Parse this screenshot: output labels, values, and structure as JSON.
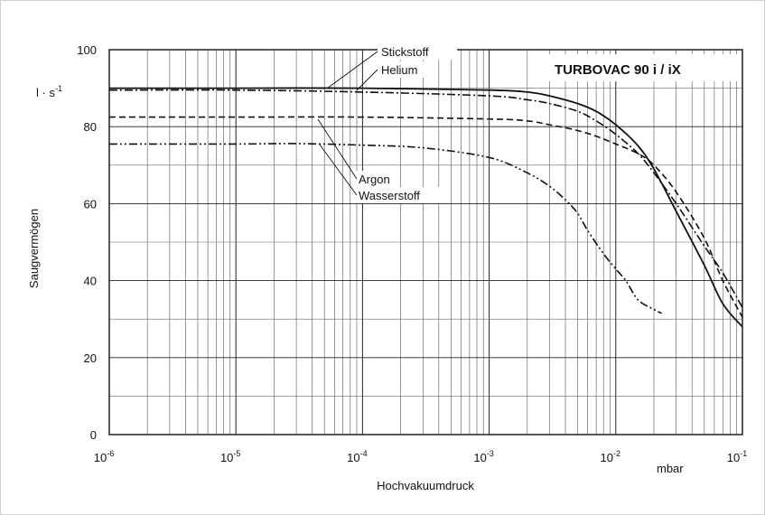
{
  "chart_data": {
    "type": "line",
    "title": "TURBOVAC 90 i / iX",
    "xlabel": "Hochvakuumdruck",
    "x_unit": "mbar",
    "ylabel": "Saugvermögen",
    "y_unit": "l · s",
    "y_unit_exp": "-1",
    "xscale": "log",
    "xlim": [
      1e-06,
      0.1
    ],
    "ylim": [
      0,
      100
    ],
    "grid": true,
    "x_ticks": [
      {
        "base": "10",
        "exp": "-6",
        "value": 1e-06
      },
      {
        "base": "10",
        "exp": "-5",
        "value": 1e-05
      },
      {
        "base": "10",
        "exp": "-4",
        "value": 0.0001
      },
      {
        "base": "10",
        "exp": "-3",
        "value": 0.001
      },
      {
        "base": "10",
        "exp": "-2",
        "value": 0.01
      },
      {
        "base": "10",
        "exp": "-1",
        "value": 0.1
      }
    ],
    "y_ticks": [
      "0",
      "20",
      "40",
      "60",
      "80",
      "100"
    ],
    "series": [
      {
        "name": "Stickstoff",
        "style": "solid",
        "x": [
          1e-06,
          1e-05,
          0.0001,
          0.001,
          0.002,
          0.003,
          0.005,
          0.007,
          0.01,
          0.015,
          0.02,
          0.03,
          0.05,
          0.07,
          0.1
        ],
        "y": [
          90,
          90,
          90,
          89.5,
          89,
          88,
          86,
          84,
          80.5,
          75,
          69,
          58,
          44,
          34,
          28
        ]
      },
      {
        "name": "Helium",
        "style": "dashdot",
        "x": [
          1e-06,
          1e-05,
          0.0001,
          0.001,
          0.002,
          0.003,
          0.005,
          0.007,
          0.01,
          0.015,
          0.02,
          0.03,
          0.05,
          0.07,
          0.1
        ],
        "y": [
          89.5,
          89.5,
          89,
          88,
          87,
          86,
          84,
          81.5,
          78,
          73,
          68,
          60,
          49,
          42,
          33
        ]
      },
      {
        "name": "Argon",
        "style": "dashed",
        "x": [
          1e-06,
          1e-05,
          0.0001,
          0.001,
          0.002,
          0.003,
          0.005,
          0.007,
          0.01,
          0.015,
          0.02,
          0.03,
          0.05,
          0.07,
          0.1
        ],
        "y": [
          82.5,
          82.5,
          82.5,
          82,
          81.5,
          80.5,
          79,
          77.5,
          75.5,
          73,
          70,
          63,
          51,
          40,
          30.5
        ]
      },
      {
        "name": "Wasserstoff",
        "style": "dashdotdot",
        "x": [
          1e-06,
          1e-05,
          3e-05,
          0.0001,
          0.0003,
          0.001,
          0.002,
          0.003,
          0.004,
          0.005,
          0.006,
          0.008,
          0.01,
          0.012,
          0.015,
          0.02,
          0.023
        ],
        "y": [
          75.5,
          75.5,
          75.6,
          75.2,
          74.5,
          72,
          68,
          64.5,
          61,
          57.5,
          53,
          47,
          43,
          40,
          35,
          32.5,
          31.5
        ]
      }
    ]
  }
}
